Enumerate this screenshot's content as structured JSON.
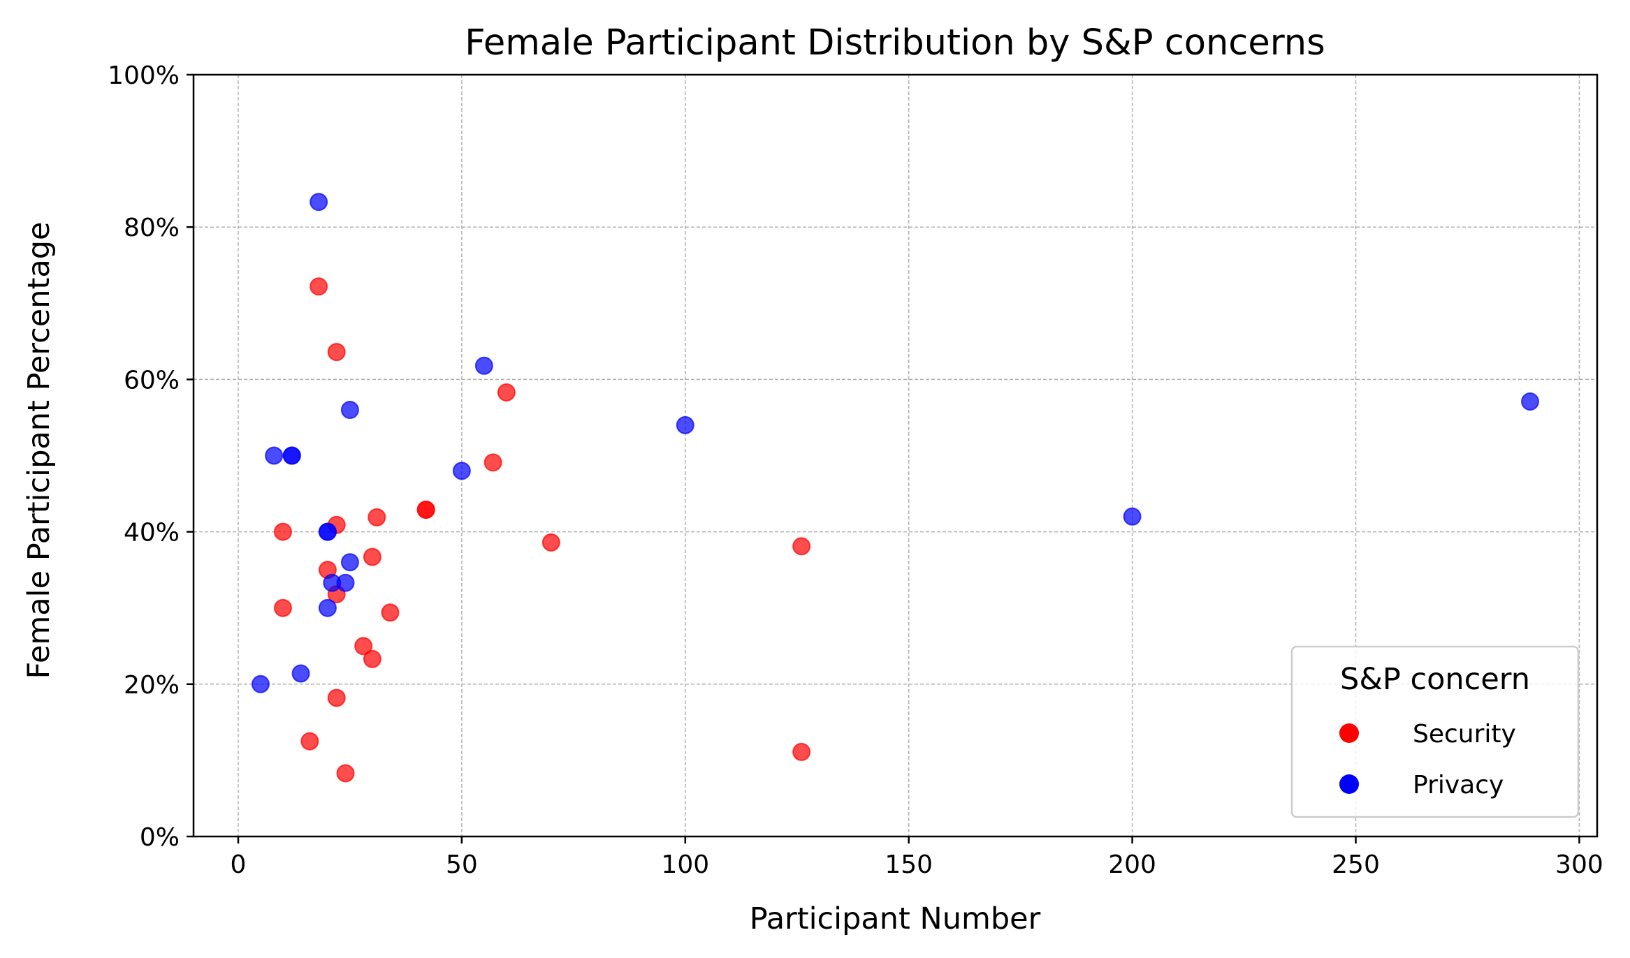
{
  "chart_data": {
    "type": "scatter",
    "title": "Female Participant Distribution by S&P concerns",
    "xlabel": "Participant Number",
    "ylabel": "Female Participant Percentage",
    "xlim": [
      -10,
      304
    ],
    "ylim": [
      0,
      100
    ],
    "x_ticks": [
      0,
      50,
      100,
      150,
      200,
      250,
      300
    ],
    "x_tick_labels": [
      "0",
      "50",
      "100",
      "150",
      "200",
      "250",
      "300"
    ],
    "y_ticks": [
      0,
      20,
      40,
      60,
      80,
      100
    ],
    "y_tick_labels": [
      "0%",
      "20%",
      "40%",
      "60%",
      "80%",
      "100%"
    ],
    "grid": true,
    "legend": {
      "title": "S&P concern",
      "placement": "lower-right"
    },
    "series": [
      {
        "name": "Security",
        "color": "#ff0000",
        "points": [
          {
            "x": 18,
            "y": 72.2
          },
          {
            "x": 22,
            "y": 63.6
          },
          {
            "x": 60,
            "y": 58.3
          },
          {
            "x": 57,
            "y": 49.1
          },
          {
            "x": 42,
            "y": 42.9
          },
          {
            "x": 42,
            "y": 42.9
          },
          {
            "x": 22,
            "y": 40.9
          },
          {
            "x": 31,
            "y": 41.9
          },
          {
            "x": 10,
            "y": 40.0
          },
          {
            "x": 70,
            "y": 38.6
          },
          {
            "x": 126,
            "y": 38.1
          },
          {
            "x": 30,
            "y": 36.7
          },
          {
            "x": 20,
            "y": 35.0
          },
          {
            "x": 22,
            "y": 31.8
          },
          {
            "x": 10,
            "y": 30.0
          },
          {
            "x": 34,
            "y": 29.4
          },
          {
            "x": 28,
            "y": 25.0
          },
          {
            "x": 30,
            "y": 23.3
          },
          {
            "x": 22,
            "y": 18.2
          },
          {
            "x": 16,
            "y": 12.5
          },
          {
            "x": 126,
            "y": 11.1
          },
          {
            "x": 24,
            "y": 8.3
          }
        ]
      },
      {
        "name": "Privacy",
        "color": "#0000ff",
        "points": [
          {
            "x": 18,
            "y": 83.3
          },
          {
            "x": 55,
            "y": 61.8
          },
          {
            "x": 25,
            "y": 56.0
          },
          {
            "x": 289,
            "y": 57.1
          },
          {
            "x": 100,
            "y": 54.0
          },
          {
            "x": 8,
            "y": 50.0
          },
          {
            "x": 12,
            "y": 50.0
          },
          {
            "x": 12,
            "y": 50.0
          },
          {
            "x": 50,
            "y": 48.0
          },
          {
            "x": 200,
            "y": 42.0
          },
          {
            "x": 20,
            "y": 40.0
          },
          {
            "x": 20,
            "y": 40.0
          },
          {
            "x": 25,
            "y": 36.0
          },
          {
            "x": 21,
            "y": 33.3
          },
          {
            "x": 24,
            "y": 33.3
          },
          {
            "x": 20,
            "y": 30.0
          },
          {
            "x": 14,
            "y": 21.4
          },
          {
            "x": 5,
            "y": 20.0
          }
        ]
      }
    ]
  }
}
